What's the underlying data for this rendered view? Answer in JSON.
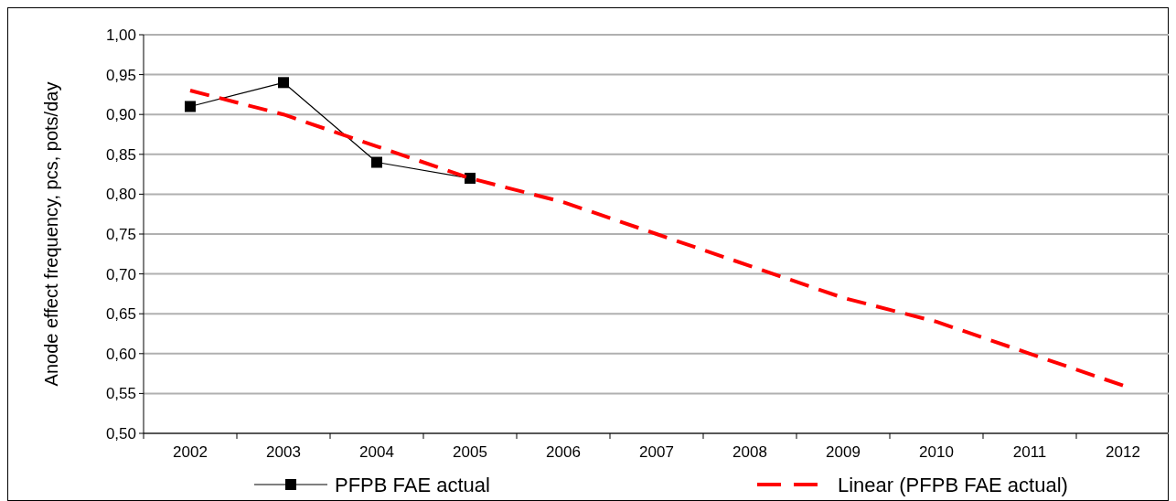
{
  "chart_data": {
    "type": "line",
    "ylabel": "Anode effect frequency, pcs, pots/day",
    "categories": [
      "2002",
      "2003",
      "2004",
      "2005",
      "2006",
      "2007",
      "2008",
      "2009",
      "2010",
      "2011",
      "2012"
    ],
    "series": [
      {
        "name": "PFPB FAE actual",
        "color": "#000000",
        "values": [
          0.91,
          0.94,
          0.84,
          0.82,
          null,
          null,
          null,
          null,
          null,
          null,
          null
        ],
        "marker": "square",
        "line_style": "solid"
      },
      {
        "name": "Linear (PFPB FAE actual)",
        "color": "#ff0000",
        "values": [
          0.93,
          0.9,
          0.86,
          0.82,
          0.79,
          0.75,
          0.71,
          0.67,
          0.64,
          0.6,
          0.56
        ],
        "marker": "none",
        "line_style": "dashed"
      }
    ],
    "ylim": [
      0.5,
      1.0
    ],
    "yticks": [
      {
        "value": 0.5,
        "label": "0,50"
      },
      {
        "value": 0.55,
        "label": "0,55"
      },
      {
        "value": 0.6,
        "label": "0,60"
      },
      {
        "value": 0.65,
        "label": "0,65"
      },
      {
        "value": 0.7,
        "label": "0,70"
      },
      {
        "value": 0.75,
        "label": "0,75"
      },
      {
        "value": 0.8,
        "label": "0,80"
      },
      {
        "value": 0.85,
        "label": "0,85"
      },
      {
        "value": 0.9,
        "label": "0,90"
      },
      {
        "value": 0.95,
        "label": "0,95"
      },
      {
        "value": 1.0,
        "label": "1,00"
      }
    ],
    "grid": "y",
    "legend": "bottom"
  }
}
